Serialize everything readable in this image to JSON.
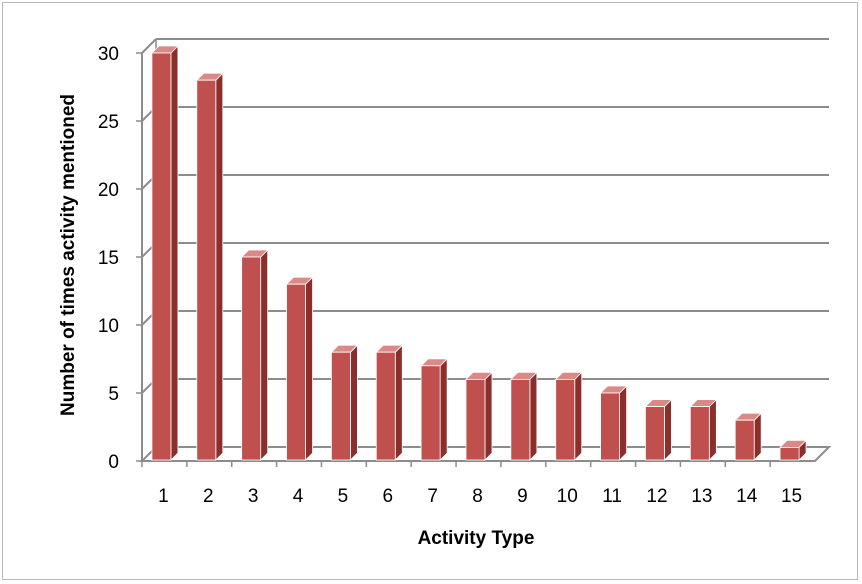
{
  "chart_data": {
    "type": "bar",
    "title": "",
    "xlabel": "Activity Type",
    "ylabel": "Number of times activity mentioned",
    "categories": [
      "1",
      "2",
      "3",
      "4",
      "5",
      "6",
      "7",
      "8",
      "9",
      "10",
      "11",
      "12",
      "13",
      "14",
      "15"
    ],
    "values": [
      30,
      28,
      15,
      13,
      8,
      8,
      7,
      6,
      6,
      6,
      5,
      4,
      4,
      3,
      1
    ],
    "ylim": [
      0,
      30
    ],
    "yticks": [
      "0",
      "5",
      "10",
      "15",
      "20",
      "25",
      "30"
    ],
    "grid": true,
    "legend": "none",
    "style": "3d-column",
    "colors": {
      "bar_front": "#c0504d",
      "bar_side": "#8b2f2c",
      "bar_top": "#d98a87",
      "grid": "#8c8c8c"
    }
  }
}
